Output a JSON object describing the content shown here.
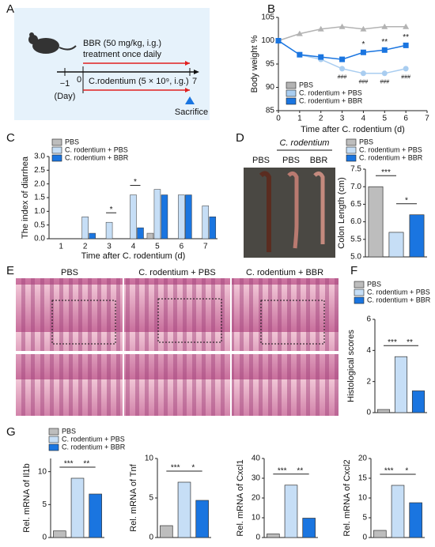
{
  "panel_labels": [
    "A",
    "B",
    "C",
    "D",
    "E",
    "F",
    "G"
  ],
  "schematic": {
    "treatment": "BBR (50 mg/kg, i.g.)",
    "schedule": "treatment once daily",
    "infection": "C.rodentium (5 × 10⁹, i.g.)",
    "days": [
      "−1",
      "0",
      "7"
    ],
    "day_unit": "(Day)",
    "endpoint": "Sacrifice"
  },
  "photo_labels": {
    "group": "C. rodentium",
    "lanes": [
      "PBS",
      "PBS",
      "BBR"
    ]
  },
  "histology_labels": [
    "PBS",
    "C. rodentium + PBS",
    "C. rodentium + BBR"
  ],
  "chart_data": [
    {
      "type": "line",
      "ylabel": "Body weight %",
      "xlabel": "Time after C. rodentium (d)",
      "x": [
        0,
        1,
        2,
        3,
        4,
        5,
        6
      ],
      "xlim": [
        0,
        7
      ],
      "xticks": [
        0,
        1,
        2,
        3,
        4,
        5,
        6,
        7
      ],
      "ylim": [
        85,
        105
      ],
      "yticks": [
        85,
        90,
        95,
        100,
        105
      ],
      "series": [
        {
          "name": "PBS",
          "color": "#b3b3b3",
          "marker": "triangle",
          "values": [
            100,
            101.5,
            102.5,
            103,
            102.5,
            103,
            103
          ]
        },
        {
          "name": "C. rodentium + PBS",
          "color": "#a9cdf0",
          "marker": "circle",
          "values": [
            100,
            97,
            96,
            94,
            93,
            93,
            94
          ],
          "annotations": [
            null,
            null,
            null,
            "###",
            "###",
            "###",
            "###"
          ]
        },
        {
          "name": "C. rodentium + BBR",
          "color": "#1a75e0",
          "marker": "square",
          "values": [
            100,
            97,
            96.5,
            96,
            97.5,
            98,
            99
          ],
          "annotations": [
            null,
            null,
            null,
            null,
            "*",
            "**",
            "**"
          ]
        }
      ]
    },
    {
      "type": "grouped-bar",
      "ylabel": "The index of diarrhea",
      "xlabel": "Time after C. rodentium (d)",
      "categories": [
        "1",
        "2",
        "3",
        "4",
        "5",
        "6",
        "7"
      ],
      "ylim": [
        0,
        3
      ],
      "yticks": [
        {
          "value": 0,
          "label": "0.0"
        },
        0.5,
        {
          "value": 1,
          "label": "1.0"
        },
        1.5,
        {
          "value": 2,
          "label": "2.0"
        },
        2.5,
        {
          "value": 3,
          "label": "3.0"
        }
      ],
      "series": [
        {
          "name": "PBS",
          "color": "#bdbdbd",
          "values": [
            0,
            0,
            0,
            0,
            0.2,
            0,
            0
          ]
        },
        {
          "name": "C. rodentium + PBS",
          "color": "#c6def6",
          "values": [
            0,
            0.8,
            0.6,
            1.6,
            1.8,
            1.6,
            1.2
          ]
        },
        {
          "name": "C. rodentium + BBR",
          "color": "#1a75e0",
          "values": [
            0,
            0.2,
            0,
            0.4,
            1.6,
            1.6,
            0.8
          ]
        }
      ],
      "significance": [
        null,
        null,
        "*",
        "*",
        null,
        null,
        null
      ]
    },
    {
      "type": "bar",
      "ylabel": "Colon Length (cm)",
      "ylim": [
        5,
        7.5
      ],
      "yticks": [
        {
          "value": 5,
          "label": "5.0"
        },
        5.5,
        {
          "value": 6,
          "label": "6.0"
        },
        6.5,
        {
          "value": 7,
          "label": "7.0"
        },
        7.5
      ],
      "series": [
        {
          "name": "PBS",
          "color": "#bdbdbd",
          "values": [
            7.0
          ]
        },
        {
          "name": "C. rodentium + PBS",
          "color": "#c6def6",
          "values": [
            5.7
          ]
        },
        {
          "name": "C. rodentium + BBR",
          "color": "#1a75e0",
          "values": [
            6.2
          ]
        }
      ],
      "significance": [
        "***",
        "*"
      ]
    },
    {
      "type": "bar",
      "ylabel": "Histological scores",
      "ylim": [
        0,
        6
      ],
      "yticks": [
        0,
        2,
        4,
        6
      ],
      "series": [
        {
          "name": "PBS",
          "color": "#bdbdbd",
          "values": [
            0.2
          ]
        },
        {
          "name": "C. rodentium + PBS",
          "color": "#c6def6",
          "values": [
            3.6
          ]
        },
        {
          "name": "C. rodentium + BBR",
          "color": "#1a75e0",
          "values": [
            1.4
          ]
        }
      ],
      "significance": [
        "***",
        "**"
      ]
    },
    {
      "type": "bar",
      "ylabel": "Rel. mRNA of Il1b",
      "ylim": [
        0,
        12
      ],
      "yticks": [
        0,
        5,
        10
      ],
      "series": [
        {
          "name": "PBS",
          "color": "#bdbdbd",
          "values": [
            1.0
          ]
        },
        {
          "name": "C. rodentium + PBS",
          "color": "#c6def6",
          "values": [
            9.0
          ]
        },
        {
          "name": "C. rodentium + BBR",
          "color": "#1a75e0",
          "values": [
            6.6
          ]
        }
      ],
      "significance": [
        "***",
        "**"
      ]
    },
    {
      "type": "bar",
      "ylabel": "Rel. mRNA of Tnf",
      "ylim": [
        0,
        10
      ],
      "yticks": [
        0,
        5,
        10
      ],
      "series": [
        {
          "color": "#bdbdbd",
          "values": [
            1.5
          ]
        },
        {
          "color": "#c6def6",
          "values": [
            7.0
          ]
        },
        {
          "color": "#1a75e0",
          "values": [
            4.7
          ]
        }
      ],
      "significance": [
        "***",
        "*"
      ]
    },
    {
      "type": "bar",
      "ylabel": "Rel. mRNA of Cxcl1",
      "ylim": [
        0,
        40
      ],
      "yticks": [
        0,
        10,
        20,
        30,
        40
      ],
      "series": [
        {
          "color": "#bdbdbd",
          "values": [
            1.8
          ]
        },
        {
          "color": "#c6def6",
          "values": [
            26.5
          ]
        },
        {
          "color": "#1a75e0",
          "values": [
            9.8
          ]
        }
      ],
      "significance": [
        "***",
        "**"
      ]
    },
    {
      "type": "bar",
      "ylabel": "Rel. mRNA of Cxcl2",
      "ylim": [
        0,
        20
      ],
      "yticks": [
        0,
        5,
        10,
        15,
        20
      ],
      "series": [
        {
          "color": "#bdbdbd",
          "values": [
            1.8
          ]
        },
        {
          "color": "#c6def6",
          "values": [
            13.2
          ]
        },
        {
          "color": "#1a75e0",
          "values": [
            8.8
          ]
        }
      ],
      "significance": [
        "***",
        "*"
      ]
    }
  ]
}
